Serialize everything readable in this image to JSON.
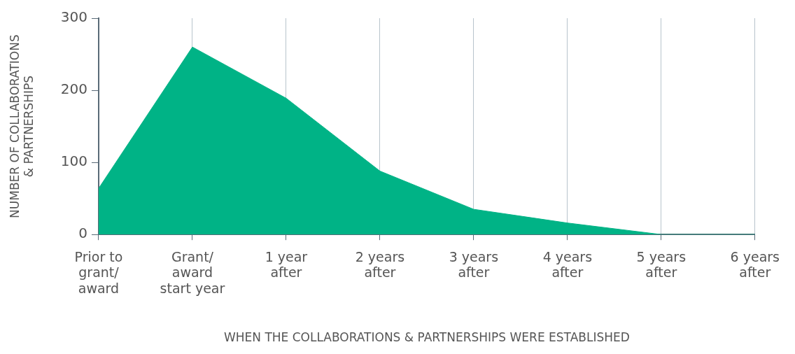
{
  "chart_data": {
    "type": "area",
    "xlabel": "WHEN THE COLLABORATIONS & PARTNERSHIPS WERE ESTABLISHED",
    "ylabel": "NUMBER OF COLLABORATIONS & PARTNERSHIPS",
    "categories": [
      "Prior to grant/award",
      "Grant/award start year",
      "1 year after",
      "2 years after",
      "3 years after",
      "4 years after",
      "5 years after",
      "6 years after"
    ],
    "values": [
      64,
      260,
      189,
      88,
      35,
      16,
      0,
      0
    ],
    "color": "#00b386",
    "ylim": [
      0,
      300
    ],
    "yticks": [
      0,
      100,
      200,
      300
    ],
    "grid": "x"
  }
}
